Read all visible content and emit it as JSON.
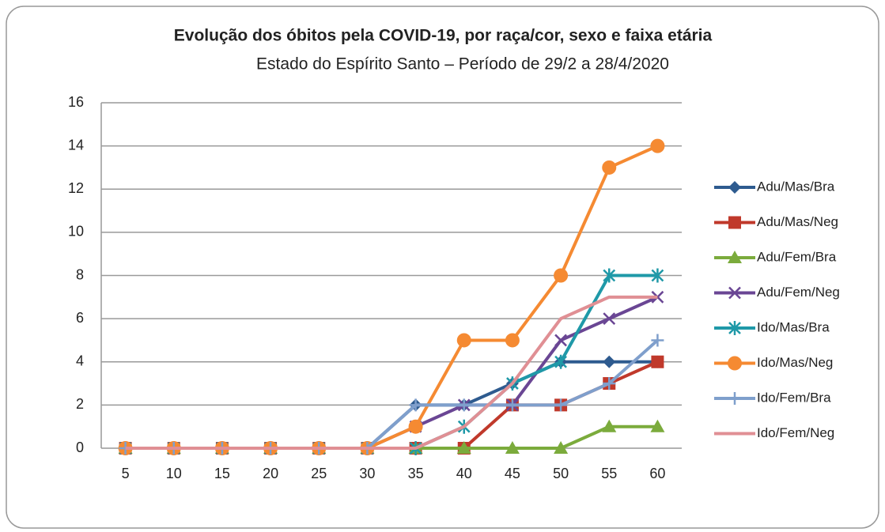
{
  "chart_data": {
    "type": "line",
    "title": "Evolução dos óbitos pela COVID-19, por raça/cor, sexo e faixa etária",
    "subtitle": "Estado do Espírito Santo – Período de 29/2 a 28/4/2020",
    "categories": [
      5,
      10,
      15,
      20,
      25,
      30,
      35,
      40,
      45,
      50,
      55,
      60
    ],
    "ylim": [
      0,
      16
    ],
    "yticks": [
      0,
      2,
      4,
      6,
      8,
      10,
      12,
      14,
      16
    ],
    "grid": true,
    "legend": "right",
    "series": [
      {
        "name": "Adu/Mas/Bra",
        "color": "#2e5b8f",
        "marker": "diamond",
        "values": [
          0,
          0,
          0,
          0,
          0,
          0,
          2,
          2,
          3,
          4,
          4,
          4
        ]
      },
      {
        "name": "Adu/Mas/Neg",
        "color": "#c0392b",
        "marker": "square",
        "values": [
          0,
          0,
          0,
          0,
          0,
          0,
          0,
          0,
          2,
          2,
          3,
          4
        ]
      },
      {
        "name": "Adu/Fem/Bra",
        "color": "#7bab3c",
        "marker": "triangle",
        "values": [
          0,
          0,
          0,
          0,
          0,
          0,
          0,
          0,
          0,
          0,
          1,
          1
        ]
      },
      {
        "name": "Adu/Fem/Neg",
        "color": "#6a4694",
        "marker": "x",
        "values": [
          0,
          0,
          0,
          0,
          0,
          0,
          1,
          2,
          2,
          5,
          6,
          7
        ]
      },
      {
        "name": "Ido/Mas/Bra",
        "color": "#1f99a8",
        "marker": "star",
        "values": [
          0,
          0,
          0,
          0,
          0,
          0,
          0,
          1,
          3,
          4,
          8,
          8
        ]
      },
      {
        "name": "Ido/Mas/Neg",
        "color": "#f58a32",
        "marker": "circle",
        "values": [
          0,
          0,
          0,
          0,
          0,
          0,
          1,
          5,
          5,
          8,
          13,
          14
        ]
      },
      {
        "name": "Ido/Fem/Bra",
        "color": "#7f9fcc",
        "marker": "plus",
        "values": [
          0,
          0,
          0,
          0,
          0,
          0,
          2,
          2,
          2,
          2,
          3,
          5
        ]
      },
      {
        "name": "Ido/Fem/Neg",
        "color": "#e08f94",
        "marker": "none",
        "values": [
          0,
          0,
          0,
          0,
          0,
          0,
          0,
          1,
          3,
          6,
          7,
          7
        ]
      }
    ]
  }
}
